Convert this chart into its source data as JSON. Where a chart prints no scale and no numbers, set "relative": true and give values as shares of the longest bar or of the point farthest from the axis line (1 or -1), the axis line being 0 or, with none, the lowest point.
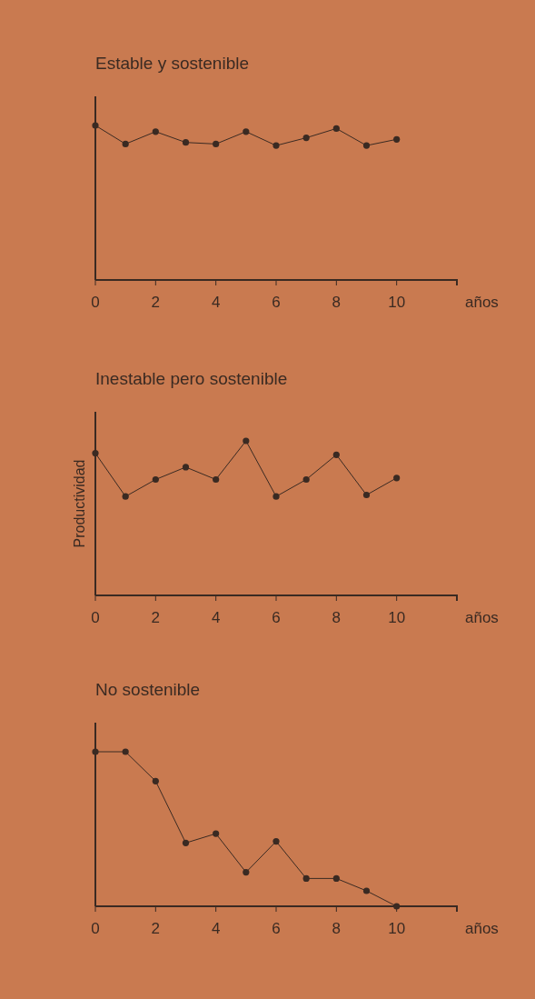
{
  "chart_data": [
    {
      "type": "line",
      "title": "Estable y sostenible",
      "xlabel": "años",
      "relative": true,
      "marker": "circle",
      "x": [
        0,
        1,
        2,
        3,
        4,
        5,
        6,
        7,
        8,
        9,
        10
      ],
      "xlim": [
        0,
        12
      ],
      "xticks": [
        0,
        2,
        4,
        6,
        8,
        10
      ],
      "series": [
        {
          "color": "#3a2a22",
          "values": [
            1,
            0.88,
            0.96,
            0.89,
            0.88,
            0.96,
            0.87,
            0.92,
            0.98,
            0.87,
            0.91
          ]
        }
      ]
    },
    {
      "type": "line",
      "title": "Inestable pero sostenible",
      "xlabel": "años",
      "ylabel": "Productividad",
      "relative": true,
      "marker": "circle",
      "x": [
        0,
        1,
        2,
        3,
        4,
        5,
        6,
        7,
        8,
        9,
        10
      ],
      "xlim": [
        0,
        12
      ],
      "xticks": [
        0,
        2,
        4,
        6,
        8,
        10
      ],
      "series": [
        {
          "color": "#3a2a22",
          "values": [
            0.92,
            0.64,
            0.75,
            0.83,
            0.75,
            1,
            0.64,
            0.75,
            0.91,
            0.65,
            0.76
          ]
        }
      ]
    },
    {
      "type": "line",
      "title": "No sostenible",
      "xlabel": "años",
      "relative": true,
      "marker": "circle",
      "x": [
        0,
        1,
        2,
        3,
        4,
        5,
        6,
        7,
        8,
        9,
        10
      ],
      "xlim": [
        0,
        12
      ],
      "xticks": [
        0,
        2,
        4,
        6,
        8,
        10
      ],
      "series": [
        {
          "color": "#3a2a22",
          "values": [
            1,
            1,
            0.81,
            0.41,
            0.47,
            0.22,
            0.42,
            0.18,
            0.18,
            0.1,
            0
          ]
        }
      ]
    }
  ]
}
